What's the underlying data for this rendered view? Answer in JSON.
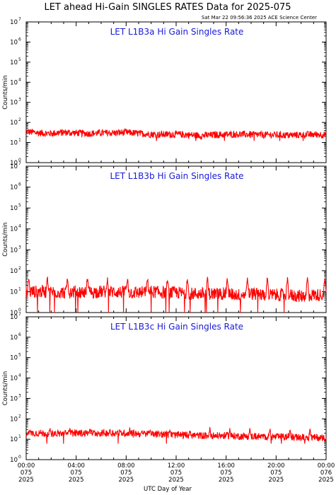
{
  "title": "LET ahead Hi-Gain SINGLES RATES Data for 2025-075",
  "timestamp": "Sat Mar 22 09:56:36 2025 ACE Science Center",
  "xlabel": "UTC Day of Year",
  "colors": {
    "series": "#ff0000",
    "panel_title": "#1a1ad6",
    "axes": "#000000"
  },
  "chart_data": [
    {
      "type": "line",
      "title": "LET L1B3a Hi Gain Singles Rate",
      "ylabel": "Counts/min",
      "yscale": "log",
      "ylim": [
        1,
        10000000
      ],
      "xlim_hours": [
        0,
        24
      ],
      "series": [
        {
          "baseline": 28,
          "min_noise": 12,
          "spikes_at_hours": [],
          "values_per_hour_approx": [
            35,
            30,
            28,
            32,
            30,
            28,
            30,
            30,
            32,
            28,
            26,
            25,
            26,
            24,
            22,
            24,
            25,
            26,
            25,
            24,
            24,
            23,
            24,
            25,
            25
          ]
        }
      ]
    },
    {
      "type": "line",
      "title": "LET L1B3b Hi Gain Singles Rate",
      "ylabel": "Counts/min",
      "yscale": "log",
      "ylim": [
        1,
        10000000
      ],
      "xlim_hours": [
        0,
        24
      ],
      "series": [
        {
          "baseline": 10,
          "min_noise": 1,
          "spikes_at_hours": [
            0.2,
            1.7,
            3.3,
            4.9,
            6.5,
            8.1,
            9.7,
            11.3,
            12.9,
            14.5,
            16.1,
            17.7,
            19.3,
            20.9,
            22.5,
            23.9
          ],
          "spike_peak": 45,
          "values_per_hour_approx": [
            10,
            10,
            10,
            9,
            10,
            9,
            10,
            10,
            9,
            9,
            10,
            9,
            9,
            8,
            8,
            8,
            8,
            7,
            8,
            7,
            7,
            7,
            6,
            7,
            7
          ]
        }
      ]
    },
    {
      "type": "line",
      "title": "LET L1B3c Hi Gain Singles Rate",
      "ylabel": "Counts/min",
      "yscale": "log",
      "ylim": [
        1,
        10000000
      ],
      "xlim_hours": [
        0,
        24
      ],
      "series": [
        {
          "baseline": 18,
          "min_noise": 6,
          "spikes_at_hours": [
            0.3,
            1.9,
            3.5,
            5.1,
            6.7,
            8.3,
            9.9,
            11.5,
            13.1,
            14.7,
            16.3,
            17.9,
            19.5,
            21.1,
            22.7
          ],
          "spike_peak": 35,
          "values_per_hour_approx": [
            20,
            20,
            19,
            19,
            20,
            20,
            20,
            20,
            20,
            19,
            18,
            17,
            16,
            16,
            15,
            15,
            15,
            14,
            14,
            13,
            13,
            13,
            12,
            12,
            12
          ]
        }
      ]
    }
  ],
  "yticks": [
    {
      "base": "10",
      "exp": "0"
    },
    {
      "base": "10",
      "exp": "1"
    },
    {
      "base": "10",
      "exp": "2"
    },
    {
      "base": "10",
      "exp": "3"
    },
    {
      "base": "10",
      "exp": "4"
    },
    {
      "base": "10",
      "exp": "5"
    },
    {
      "base": "10",
      "exp": "6"
    },
    {
      "base": "10",
      "exp": "7"
    }
  ],
  "xticks": [
    {
      "time": "00:00",
      "doy": "075",
      "year": "2025"
    },
    {
      "time": "04:00",
      "doy": "075",
      "year": "2025"
    },
    {
      "time": "08:00",
      "doy": "075",
      "year": "2025"
    },
    {
      "time": "12:00",
      "doy": "075",
      "year": "2025"
    },
    {
      "time": "16:00",
      "doy": "075",
      "year": "2025"
    },
    {
      "time": "20:00",
      "doy": "075",
      "year": "2025"
    },
    {
      "time": "00:00",
      "doy": "076",
      "year": "2025"
    }
  ]
}
